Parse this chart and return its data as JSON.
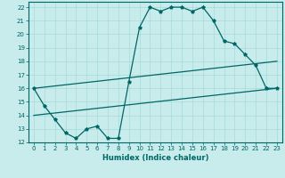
{
  "xlabel": "Humidex (Indice chaleur)",
  "bg_color": "#c8ecec",
  "grid_color": "#a8d8d8",
  "line_color": "#006666",
  "xlim": [
    -0.5,
    23.5
  ],
  "ylim": [
    12,
    22.4
  ],
  "xticks": [
    0,
    1,
    2,
    3,
    4,
    5,
    6,
    7,
    8,
    9,
    10,
    11,
    12,
    13,
    14,
    15,
    16,
    17,
    18,
    19,
    20,
    21,
    22,
    23
  ],
  "yticks": [
    12,
    13,
    14,
    15,
    16,
    17,
    18,
    19,
    20,
    21,
    22
  ],
  "line1_x": [
    0,
    1,
    2,
    3,
    4,
    5,
    6,
    7,
    8,
    9,
    10,
    11,
    12,
    13,
    14,
    15,
    16,
    17,
    18,
    19,
    20,
    21,
    22,
    23
  ],
  "line1_y": [
    16.0,
    14.7,
    13.7,
    12.7,
    12.3,
    13.0,
    13.2,
    12.3,
    12.3,
    16.5,
    20.5,
    22.0,
    21.7,
    22.0,
    22.0,
    21.7,
    22.0,
    21.0,
    19.5,
    19.3,
    18.5,
    17.7,
    16.0,
    16.0
  ],
  "line2_x": [
    0,
    23
  ],
  "line2_y": [
    14.0,
    16.0
  ],
  "line3_x": [
    0,
    23
  ],
  "line3_y": [
    16.0,
    18.0
  ],
  "tick_fontsize": 5,
  "xlabel_fontsize": 6
}
